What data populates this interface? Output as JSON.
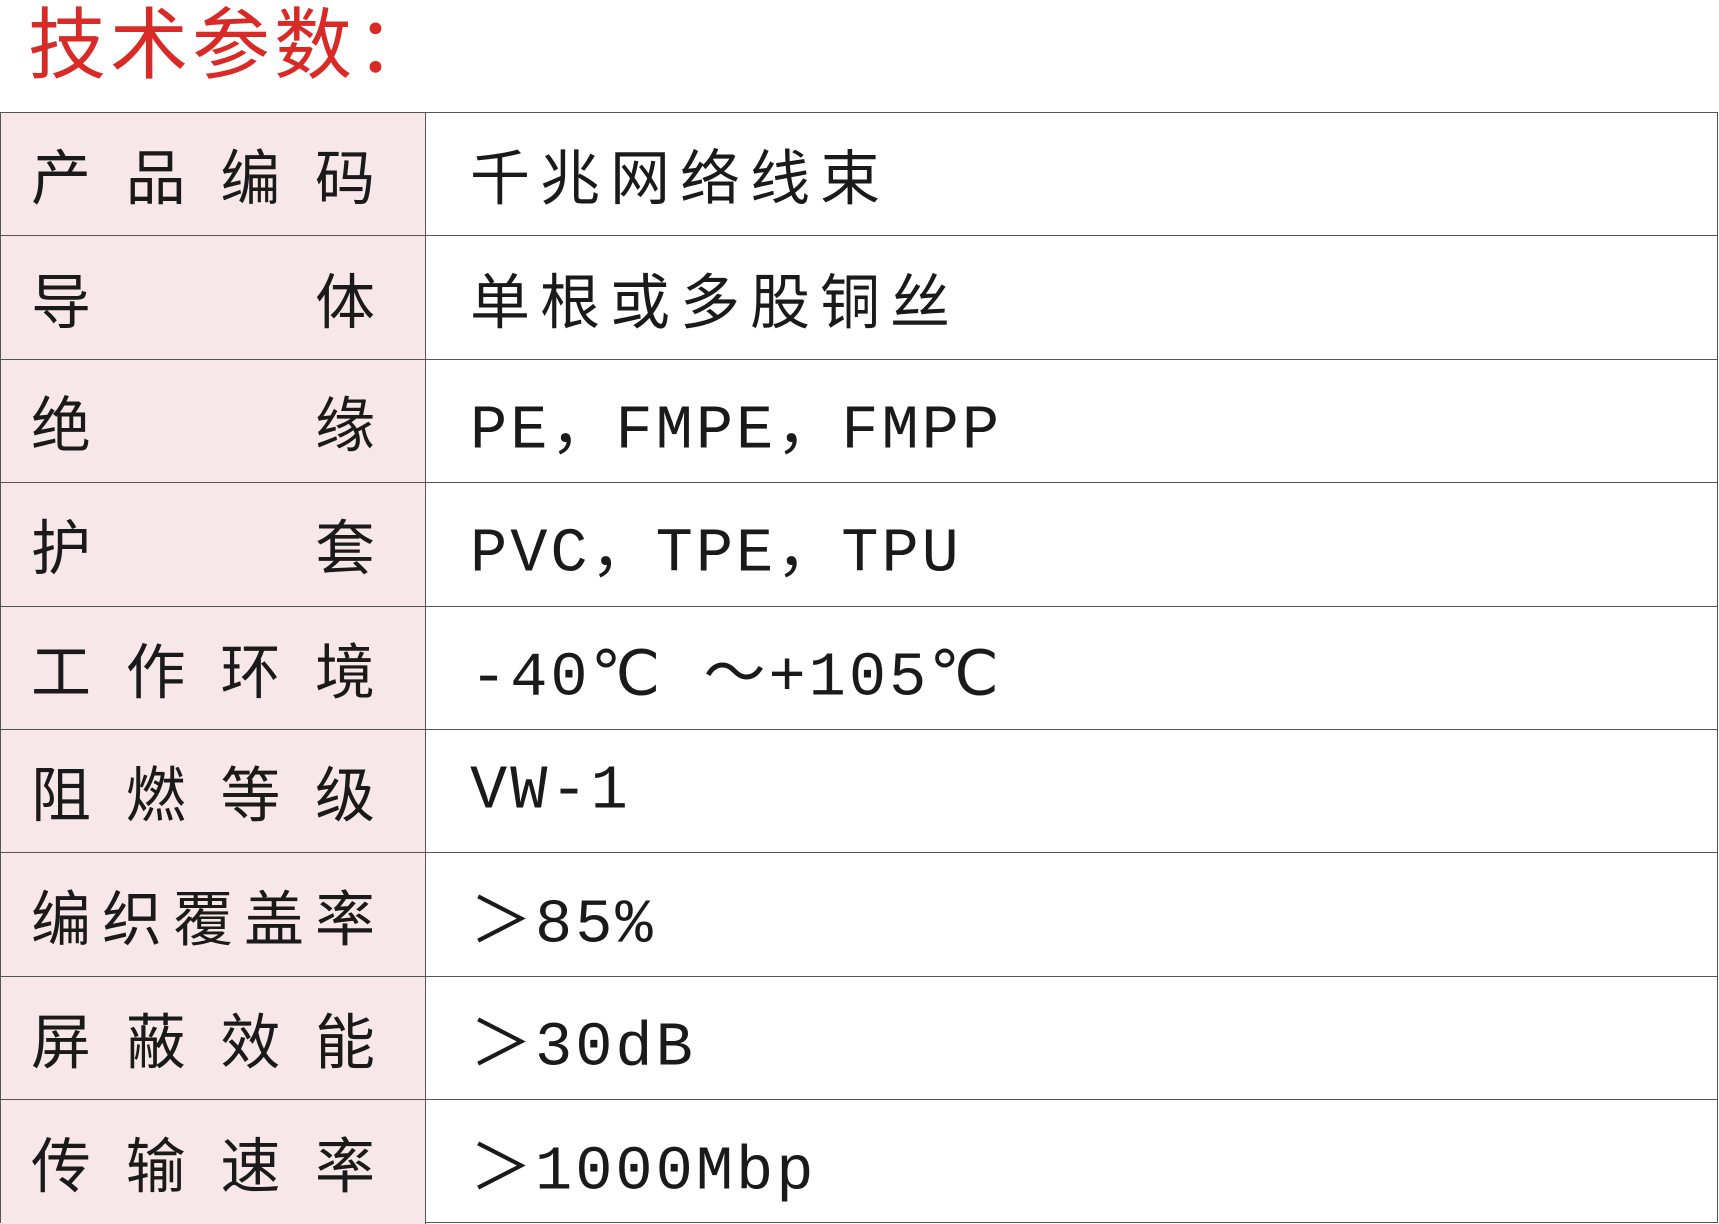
{
  "title": "技术参数：",
  "title_color": "#d82a26",
  "label_bg": "#f8e7e9",
  "rows": [
    {
      "label": "产品编码",
      "value": "千兆网络线束",
      "latin": false
    },
    {
      "label": "导体",
      "value": "单根或多股铜丝",
      "latin": false
    },
    {
      "label": "绝缘",
      "value": "PE，FMPE，FMPP",
      "latin": true
    },
    {
      "label": "护套",
      "value": "PVC，TPE，TPU",
      "latin": true
    },
    {
      "label": "工作环境",
      "value": "-40℃ ～+105℃",
      "latin": true
    },
    {
      "label": "阻燃等级",
      "value": "VW-1",
      "latin": true
    },
    {
      "label": "编织覆盖率",
      "value": "＞85%",
      "latin": true
    },
    {
      "label": "屏蔽效能",
      "value": "＞30dB",
      "latin": true
    },
    {
      "label": "传输速率",
      "value": "＞1000Mbp",
      "latin": true
    }
  ]
}
